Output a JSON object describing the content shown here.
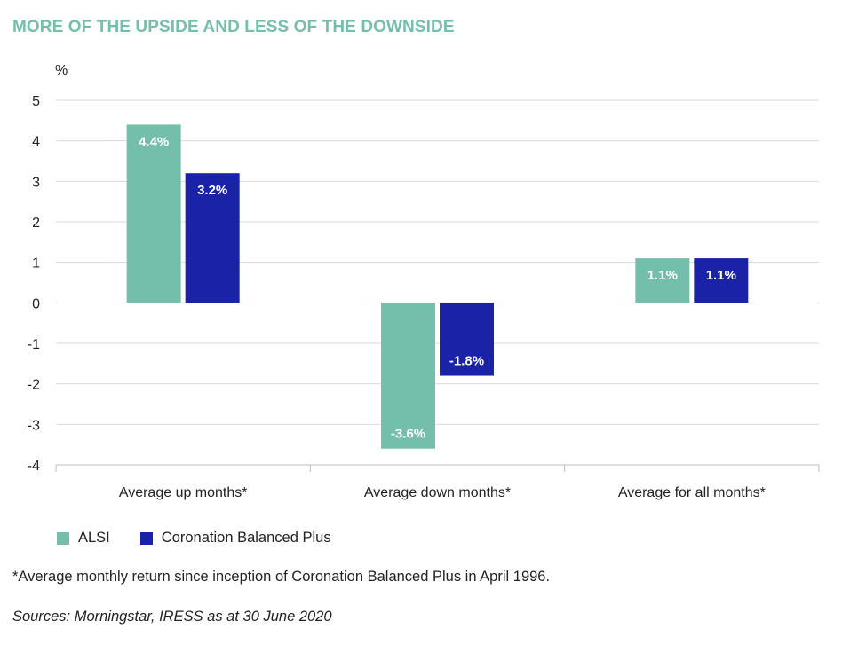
{
  "chart_data": {
    "type": "bar",
    "title": "MORE OF THE UPSIDE AND LESS OF THE DOWNSIDE",
    "ylabel": "%",
    "xlabel": "",
    "ylim": [
      -4,
      5
    ],
    "yticks": [
      "5",
      "4",
      "3",
      "2",
      "1",
      "0",
      "-1",
      "-2",
      "-3",
      "-4"
    ],
    "grid": true,
    "legend_position": "bottom-left",
    "categories": [
      "Average up months*",
      "Average down months*",
      "Average for all months*"
    ],
    "series": [
      {
        "name": "ALSI",
        "color": "#74bfab",
        "values": [
          4.4,
          -3.6,
          1.1
        ],
        "labels": [
          "4.4%",
          "-3.6%",
          "1.1%"
        ]
      },
      {
        "name": "Coronation Balanced Plus",
        "color": "#1a23a8",
        "values": [
          3.2,
          -1.8,
          1.1
        ],
        "labels": [
          "3.2%",
          "-1.8%",
          "1.1%"
        ]
      }
    ],
    "footnote": "*Average monthly return since inception of Coronation Balanced Plus in April 1996.",
    "source": "Sources: Morningstar, IRESS as at 30 June 2020"
  }
}
